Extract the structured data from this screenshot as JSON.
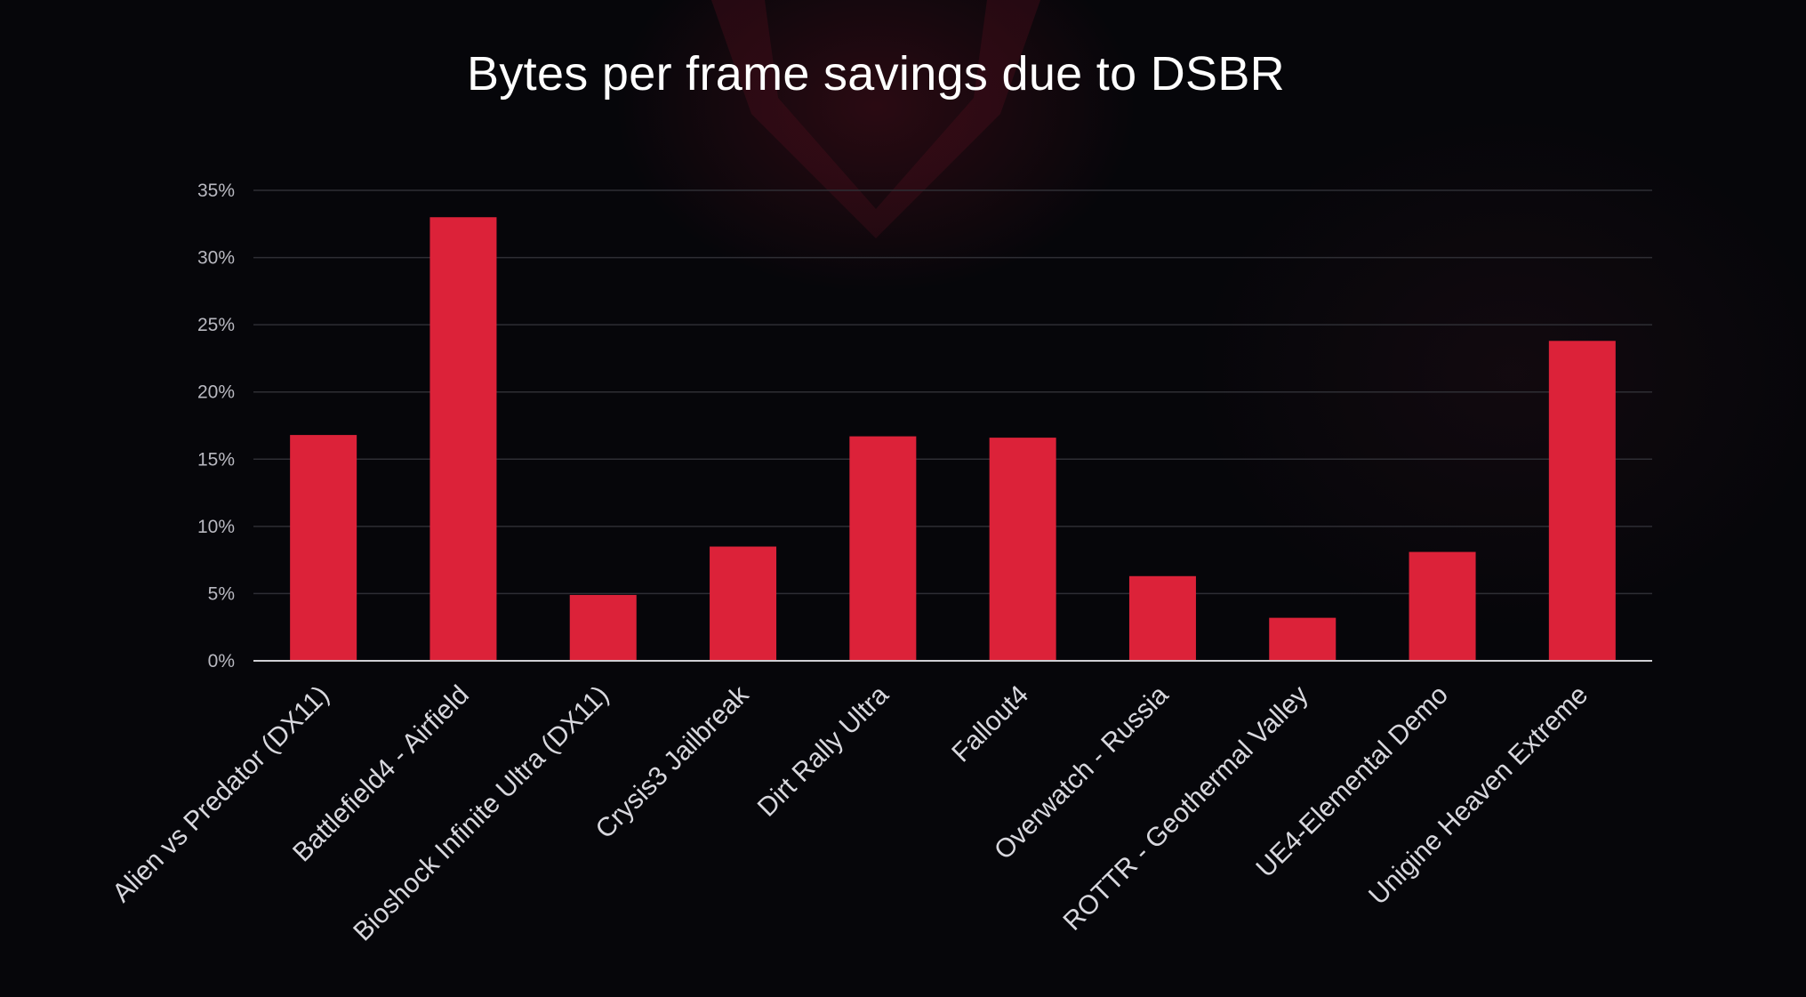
{
  "chart_data": {
    "type": "bar",
    "title": "Bytes per frame savings due to DSBR",
    "xlabel": "",
    "ylabel": "",
    "categories": [
      "Alien vs Predator (DX11)",
      "Battlefield4 - Airfield",
      "Bioshock Infinite Ultra (DX11)",
      "Crysis3 Jailbreak",
      "Dirt Rally Ultra",
      "Fallout4",
      "Overwatch - Russia",
      "ROTTR - Geothermal Valley",
      "UE4-Elemental Demo",
      "Unigine Heaven Extreme"
    ],
    "values": [
      16.8,
      33.0,
      4.9,
      8.5,
      16.7,
      16.6,
      6.3,
      3.2,
      8.1,
      23.8
    ],
    "ylim": [
      0,
      35
    ],
    "yticks": [
      "0%",
      "5%",
      "10%",
      "15%",
      "20%",
      "25%",
      "30%",
      "35%"
    ],
    "grid": true,
    "legend": "none",
    "bar_color": "#dc2239"
  },
  "colors": {
    "background": "#06060a",
    "gridline": "#2e2e34",
    "axis": "#cfcfd4",
    "accent": "#dc2239"
  }
}
